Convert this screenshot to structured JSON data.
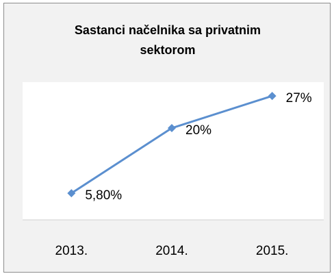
{
  "chart_data": {
    "type": "line",
    "title": "Sastanci  načelnika sa privatnim sektorom",
    "categories": [
      "2013.",
      "2014.",
      "2015."
    ],
    "series": [
      {
        "values": [
          5.8,
          20,
          27
        ],
        "value_labels": [
          "5,80%",
          "20%",
          "27%"
        ],
        "color": "#5b8fcf"
      }
    ],
    "ylim": [
      0,
      30
    ]
  }
}
